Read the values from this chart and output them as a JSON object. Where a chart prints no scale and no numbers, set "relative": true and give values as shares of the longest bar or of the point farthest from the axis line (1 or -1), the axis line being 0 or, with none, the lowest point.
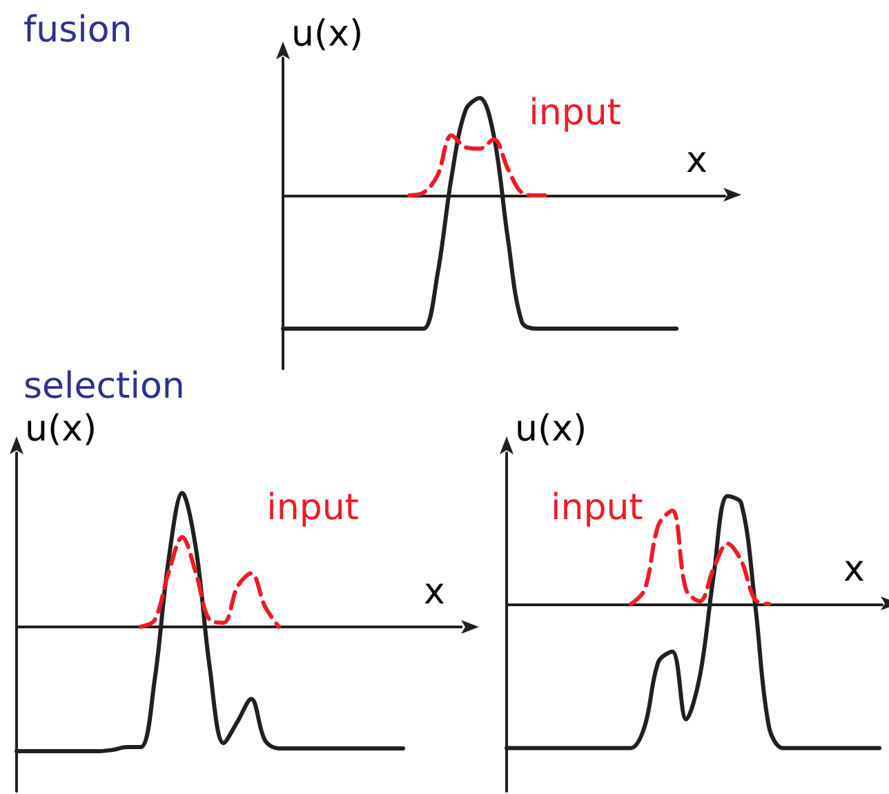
{
  "chart_data": [
    {
      "type": "line",
      "title": "fusion",
      "xlabel": "x",
      "ylabel": "u(x)",
      "relative": true,
      "tick_labels": false,
      "grid": false,
      "marker": "none",
      "legend": "top right",
      "categories": [
        null,
        null,
        null,
        null,
        null,
        null,
        null,
        null,
        null,
        null,
        null,
        null,
        null,
        null,
        null,
        null,
        null,
        null,
        null,
        null,
        null,
        null,
        null,
        null,
        null,
        null,
        null,
        null,
        null
      ],
      "series": [
        {
          "color": "#231f20",
          "line_style": "solid",
          "values": [
            -1,
            -1,
            -1,
            -1,
            -1,
            -1,
            -1,
            -1,
            -1,
            -1,
            -1,
            -0.59,
            0.14,
            0.64,
            0.73,
            0.45,
            -0.32,
            -0.95,
            -1,
            -1,
            -1,
            -1,
            -1,
            -1,
            -1,
            -1,
            -1,
            -1,
            -1
          ]
        },
        {
          "name": "input",
          "color": "#ed1c24",
          "line_style": "dashed",
          "values": [
            null,
            null,
            null,
            null,
            null,
            null,
            null,
            null,
            null,
            0,
            0.02,
            0.15,
            0.45,
            0.36,
            0.35,
            0.42,
            0.2,
            0.02,
            0,
            0,
            null,
            null,
            null,
            null,
            null,
            null,
            null,
            null,
            null
          ]
        }
      ]
    },
    {
      "type": "line",
      "title": "selection",
      "xlabel": "x",
      "ylabel": "u(x)",
      "relative": true,
      "tick_labels": false,
      "grid": false,
      "marker": "none",
      "legend": "top right",
      "categories": [
        null,
        null,
        null,
        null,
        null,
        null,
        null,
        null,
        null,
        null,
        null,
        null,
        null,
        null,
        null,
        null,
        null,
        null,
        null,
        null,
        null,
        null,
        null,
        null,
        null,
        null,
        null,
        null,
        null
      ],
      "series": [
        {
          "color": "#231f20",
          "line_style": "solid",
          "values": [
            -0.93,
            -0.93,
            -0.93,
            -0.93,
            -0.93,
            -0.93,
            -0.93,
            -0.92,
            -0.9,
            -0.9,
            -0.4,
            0.49,
            1,
            0.58,
            -0.31,
            -0.87,
            -0.71,
            -0.54,
            -0.85,
            -0.91,
            -0.91,
            -0.91,
            -0.91,
            -0.91,
            -0.91,
            -0.91,
            -0.91,
            -0.91,
            -0.91
          ]
        },
        {
          "name": "input",
          "color": "#ed1c24",
          "line_style": "dashed",
          "values": [
            null,
            null,
            null,
            null,
            null,
            null,
            null,
            null,
            null,
            0,
            0.05,
            0.4,
            0.67,
            0.4,
            0.05,
            0.03,
            0.3,
            0.4,
            0.15,
            0,
            null,
            null,
            null,
            null,
            null,
            null,
            null,
            null,
            null
          ]
        }
      ]
    },
    {
      "type": "line",
      "xlabel": "x",
      "ylabel": "u(x)",
      "relative": true,
      "tick_labels": false,
      "grid": false,
      "marker": "none",
      "legend": "top left",
      "categories": [
        null,
        null,
        null,
        null,
        null,
        null,
        null,
        null,
        null,
        null,
        null,
        null,
        null,
        null,
        null,
        null,
        null,
        null,
        null,
        null,
        null,
        null,
        null,
        null,
        null,
        null,
        null,
        null
      ],
      "series": [
        {
          "color": "#231f20",
          "line_style": "solid",
          "values": [
            -1,
            -1,
            -1,
            -1,
            -1,
            -1,
            -1,
            -1,
            -1,
            -1,
            -0.85,
            -0.4,
            -0.33,
            -0.8,
            -0.5,
            0.2,
            0.75,
            0.7,
            0,
            -0.85,
            -1,
            -1,
            -1,
            -1,
            -1,
            -1,
            -1,
            -1
          ]
        },
        {
          "name": "input",
          "color": "#ed1c24",
          "line_style": "dashed",
          "values": [
            null,
            null,
            null,
            null,
            null,
            null,
            null,
            null,
            null,
            0,
            0.1,
            0.55,
            0.65,
            0.1,
            0.02,
            0.25,
            0.42,
            0.3,
            0.03,
            0,
            null,
            null,
            null,
            null,
            null,
            null,
            null,
            null
          ]
        }
      ]
    }
  ]
}
